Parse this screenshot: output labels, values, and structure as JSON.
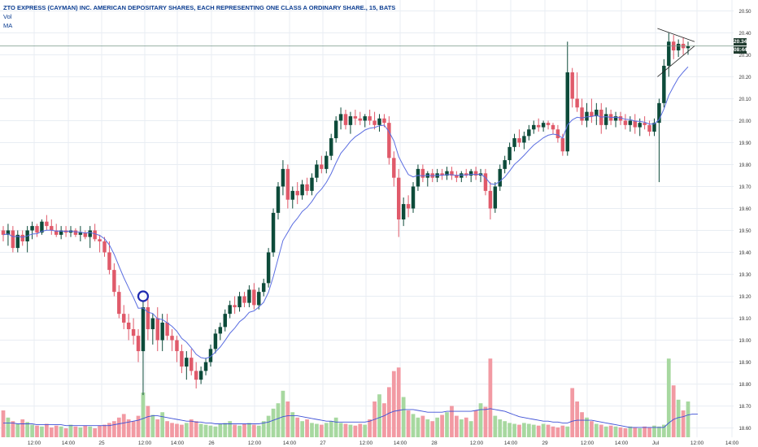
{
  "legend": {
    "title": "ZTO EXPRESS (CAYMAN) INC. AMERICAN DEPOSITARY SHARES, EACH REPRESENTING ONE CLASS A ORDINARY SHARE., 15, BATS",
    "vol_label": "Vol",
    "ma_label": "MA"
  },
  "price_tags": {
    "last_price": "20.34",
    "countdown": "08:44"
  },
  "colors": {
    "up": "#0d4b3a",
    "down": "#e05a6a",
    "ma": "#5b6ee1",
    "vol_up": "#a7d8a0",
    "vol_down": "#f29aa3",
    "vol_ma": "#3f51d6",
    "marker": "#1f2bb0",
    "grid": "#e8edf3"
  },
  "chart_data": {
    "type": "candlestick",
    "interval": "15",
    "exchange": "BATS",
    "ylim": [
      18.58,
      20.52
    ],
    "y_ticks": [
      "20.50",
      "20.40",
      "20.30",
      "20.20",
      "20.10",
      "20.00",
      "19.90",
      "19.80",
      "19.70",
      "19.60",
      "19.50",
      "19.40",
      "19.30",
      "19.20",
      "19.10",
      "19.00",
      "18.90",
      "18.80",
      "18.70",
      "18.60"
    ],
    "x_ticks": [
      "12:00",
      "14:00",
      "25",
      "12:00",
      "14:00",
      "26",
      "12:00",
      "14:00",
      "27",
      "12:00",
      "14:00",
      "28",
      "12:00",
      "14:00",
      "29",
      "12:00",
      "14:00",
      "Jul",
      "12:00",
      "14:00"
    ],
    "last_price": 20.34,
    "horizontal_line": 20.34,
    "marker_circle": {
      "candle_index": 29,
      "price": 19.2
    },
    "candles": [
      [
        19.5,
        19.52,
        19.45,
        19.48
      ],
      [
        19.48,
        19.53,
        19.43,
        19.5
      ],
      [
        19.5,
        19.52,
        19.4,
        19.42
      ],
      [
        19.42,
        19.5,
        19.4,
        19.48
      ],
      [
        19.48,
        19.5,
        19.43,
        19.45
      ],
      [
        19.45,
        19.52,
        19.4,
        19.5
      ],
      [
        19.5,
        19.54,
        19.46,
        19.52
      ],
      [
        19.52,
        19.53,
        19.47,
        19.49
      ],
      [
        19.49,
        19.55,
        19.48,
        19.54
      ],
      [
        19.54,
        19.57,
        19.5,
        19.52
      ],
      [
        19.52,
        19.55,
        19.48,
        19.5
      ],
      [
        19.5,
        19.53,
        19.47,
        19.48
      ],
      [
        19.48,
        19.52,
        19.46,
        19.5
      ],
      [
        19.5,
        19.52,
        19.47,
        19.49
      ],
      [
        19.49,
        19.52,
        19.47,
        19.5
      ],
      [
        19.5,
        19.51,
        19.47,
        19.48
      ],
      [
        19.48,
        19.52,
        19.45,
        19.49
      ],
      [
        19.49,
        19.5,
        19.46,
        19.47
      ],
      [
        19.47,
        19.52,
        19.42,
        19.5
      ],
      [
        19.5,
        19.53,
        19.45,
        19.46
      ],
      [
        19.46,
        19.48,
        19.4,
        19.45
      ],
      [
        19.45,
        19.47,
        19.38,
        19.4
      ],
      [
        19.4,
        19.45,
        19.3,
        19.32
      ],
      [
        19.32,
        19.35,
        19.2,
        19.22
      ],
      [
        19.22,
        19.25,
        19.1,
        19.12
      ],
      [
        19.12,
        19.16,
        19.05,
        19.08
      ],
      [
        19.08,
        19.12,
        19.0,
        19.05
      ],
      [
        19.05,
        19.1,
        18.98,
        19.02
      ],
      [
        19.02,
        19.05,
        18.9,
        18.95
      ],
      [
        18.95,
        19.18,
        18.75,
        19.15
      ],
      [
        19.15,
        19.2,
        19.0,
        19.05
      ],
      [
        19.05,
        19.12,
        18.98,
        19.1
      ],
      [
        19.1,
        19.15,
        18.95,
        19.0
      ],
      [
        19.0,
        19.12,
        18.95,
        19.08
      ],
      [
        19.08,
        19.12,
        19.0,
        19.02
      ],
      [
        19.02,
        19.05,
        18.95,
        19.0
      ],
      [
        19.0,
        19.02,
        18.9,
        18.95
      ],
      [
        18.95,
        18.98,
        18.85,
        18.88
      ],
      [
        18.88,
        18.95,
        18.82,
        18.92
      ],
      [
        18.92,
        18.96,
        18.84,
        18.86
      ],
      [
        18.86,
        18.9,
        18.78,
        18.82
      ],
      [
        18.82,
        18.88,
        18.8,
        18.86
      ],
      [
        18.86,
        18.92,
        18.84,
        18.9
      ],
      [
        18.9,
        18.98,
        18.88,
        18.96
      ],
      [
        18.96,
        19.05,
        18.94,
        19.03
      ],
      [
        19.03,
        19.08,
        19.0,
        19.06
      ],
      [
        19.06,
        19.14,
        19.04,
        19.12
      ],
      [
        19.12,
        19.18,
        19.1,
        19.16
      ],
      [
        19.16,
        19.2,
        19.12,
        19.15
      ],
      [
        19.15,
        19.22,
        19.13,
        19.2
      ],
      [
        19.2,
        19.22,
        19.15,
        19.17
      ],
      [
        19.17,
        19.25,
        19.15,
        19.23
      ],
      [
        19.23,
        19.26,
        19.14,
        19.16
      ],
      [
        19.16,
        19.24,
        19.14,
        19.22
      ],
      [
        19.22,
        19.28,
        19.2,
        19.26
      ],
      [
        19.26,
        19.42,
        19.24,
        19.4
      ],
      [
        19.4,
        19.6,
        19.38,
        19.58
      ],
      [
        19.58,
        19.72,
        19.55,
        19.7
      ],
      [
        19.7,
        19.82,
        19.66,
        19.78
      ],
      [
        19.78,
        19.8,
        19.6,
        19.64
      ],
      [
        19.64,
        19.7,
        19.6,
        19.68
      ],
      [
        19.68,
        19.72,
        19.62,
        19.66
      ],
      [
        19.66,
        19.73,
        19.64,
        19.71
      ],
      [
        19.71,
        19.74,
        19.66,
        19.68
      ],
      [
        19.68,
        19.76,
        19.66,
        19.74
      ],
      [
        19.74,
        19.82,
        19.72,
        19.8
      ],
      [
        19.8,
        19.84,
        19.76,
        19.78
      ],
      [
        19.78,
        19.86,
        19.76,
        19.84
      ],
      [
        19.84,
        19.94,
        19.82,
        19.92
      ],
      [
        19.92,
        20.02,
        19.9,
        20.0
      ],
      [
        20.0,
        20.06,
        19.96,
        20.03
      ],
      [
        20.03,
        20.05,
        19.96,
        19.98
      ],
      [
        19.98,
        20.04,
        19.94,
        20.02
      ],
      [
        20.02,
        20.05,
        19.98,
        20.01
      ],
      [
        20.01,
        20.04,
        19.98,
        20.0
      ],
      [
        20.0,
        20.03,
        19.97,
        20.02
      ],
      [
        20.02,
        20.05,
        19.98,
        20.0
      ],
      [
        20.0,
        20.04,
        19.96,
        19.98
      ],
      [
        19.98,
        20.03,
        19.95,
        20.01
      ],
      [
        20.01,
        20.03,
        19.97,
        19.99
      ],
      [
        19.99,
        20.02,
        19.8,
        19.83
      ],
      [
        19.83,
        19.86,
        19.7,
        19.74
      ],
      [
        19.74,
        19.78,
        19.47,
        19.55
      ],
      [
        19.55,
        19.65,
        19.52,
        19.62
      ],
      [
        19.62,
        19.66,
        19.56,
        19.6
      ],
      [
        19.6,
        19.72,
        19.58,
        19.7
      ],
      [
        19.7,
        19.8,
        19.68,
        19.78
      ],
      [
        19.78,
        19.8,
        19.72,
        19.74
      ],
      [
        19.74,
        19.77,
        19.7,
        19.76
      ],
      [
        19.76,
        19.78,
        19.72,
        19.74
      ],
      [
        19.74,
        19.78,
        19.72,
        19.76
      ],
      [
        19.76,
        19.78,
        19.73,
        19.75
      ],
      [
        19.75,
        19.79,
        19.73,
        19.77
      ],
      [
        19.77,
        19.79,
        19.73,
        19.75
      ],
      [
        19.75,
        19.77,
        19.72,
        19.74
      ],
      [
        19.74,
        19.77,
        19.72,
        19.76
      ],
      [
        19.76,
        19.78,
        19.74,
        19.75
      ],
      [
        19.75,
        19.78,
        19.72,
        19.77
      ],
      [
        19.77,
        19.79,
        19.73,
        19.75
      ],
      [
        19.75,
        19.78,
        19.72,
        19.76
      ],
      [
        19.76,
        19.78,
        19.66,
        19.68
      ],
      [
        19.68,
        19.72,
        19.55,
        19.6
      ],
      [
        19.6,
        19.72,
        19.58,
        19.7
      ],
      [
        19.7,
        19.8,
        19.68,
        19.78
      ],
      [
        19.78,
        19.84,
        19.76,
        19.82
      ],
      [
        19.82,
        19.9,
        19.8,
        19.88
      ],
      [
        19.88,
        19.94,
        19.86,
        19.92
      ],
      [
        19.92,
        19.96,
        19.88,
        19.9
      ],
      [
        19.9,
        19.95,
        19.87,
        19.93
      ],
      [
        19.93,
        19.98,
        19.91,
        19.96
      ],
      [
        19.96,
        20.0,
        19.94,
        19.98
      ],
      [
        19.98,
        20.01,
        19.95,
        19.97
      ],
      [
        19.97,
        20.0,
        19.95,
        19.99
      ],
      [
        19.99,
        20.0,
        19.96,
        19.98
      ],
      [
        19.98,
        19.99,
        19.94,
        19.96
      ],
      [
        19.96,
        19.98,
        19.9,
        19.92
      ],
      [
        19.92,
        19.94,
        19.84,
        19.86
      ],
      [
        19.86,
        20.36,
        19.84,
        20.22
      ],
      [
        20.22,
        20.24,
        20.06,
        20.1
      ],
      [
        20.1,
        20.22,
        20.04,
        20.06
      ],
      [
        20.06,
        20.1,
        19.98,
        20.0
      ],
      [
        20.0,
        20.08,
        19.97,
        20.04
      ],
      [
        20.04,
        20.1,
        19.99,
        20.02
      ],
      [
        20.02,
        20.08,
        19.98,
        20.05
      ],
      [
        20.05,
        20.08,
        19.94,
        19.98
      ],
      [
        19.98,
        20.06,
        19.96,
        20.03
      ],
      [
        20.03,
        20.05,
        19.98,
        20.0
      ],
      [
        20.0,
        20.04,
        19.97,
        20.02
      ],
      [
        20.02,
        20.04,
        19.98,
        20.0
      ],
      [
        20.0,
        20.03,
        19.96,
        19.98
      ],
      [
        19.98,
        20.02,
        19.95,
        20.0
      ],
      [
        20.0,
        20.03,
        19.94,
        19.97
      ],
      [
        19.97,
        20.01,
        19.93,
        19.99
      ],
      [
        19.99,
        20.02,
        19.96,
        19.98
      ],
      [
        19.98,
        20.0,
        19.93,
        19.95
      ],
      [
        19.95,
        20.01,
        19.93,
        19.99
      ],
      [
        19.99,
        20.1,
        19.72,
        20.08
      ],
      [
        20.08,
        20.28,
        20.06,
        20.25
      ],
      [
        20.25,
        20.4,
        20.2,
        20.36
      ],
      [
        20.36,
        20.39,
        20.28,
        20.32
      ],
      [
        20.32,
        20.37,
        20.29,
        20.35
      ],
      [
        20.35,
        20.38,
        20.3,
        20.33
      ],
      [
        20.33,
        20.36,
        20.3,
        20.34
      ]
    ],
    "volume": {
      "ylim": [
        0,
        1.0
      ],
      "values": [
        0.3,
        0.22,
        0.18,
        0.15,
        0.2,
        0.17,
        0.14,
        0.13,
        0.12,
        0.15,
        0.11,
        0.13,
        0.12,
        0.1,
        0.14,
        0.12,
        0.11,
        0.13,
        0.12,
        0.1,
        0.13,
        0.14,
        0.16,
        0.18,
        0.22,
        0.26,
        0.2,
        0.18,
        0.24,
        0.5,
        0.35,
        0.25,
        0.2,
        0.28,
        0.18,
        0.16,
        0.15,
        0.14,
        0.16,
        0.2,
        0.18,
        0.15,
        0.14,
        0.13,
        0.12,
        0.15,
        0.16,
        0.18,
        0.14,
        0.13,
        0.15,
        0.16,
        0.14,
        0.13,
        0.18,
        0.24,
        0.32,
        0.38,
        0.52,
        0.4,
        0.28,
        0.22,
        0.18,
        0.2,
        0.16,
        0.15,
        0.14,
        0.16,
        0.18,
        0.22,
        0.16,
        0.15,
        0.14,
        0.13,
        0.15,
        0.14,
        0.2,
        0.4,
        0.48,
        0.38,
        0.56,
        0.74,
        0.78,
        0.45,
        0.3,
        0.26,
        0.22,
        0.24,
        0.2,
        0.18,
        0.22,
        0.25,
        0.28,
        0.35,
        0.24,
        0.2,
        0.22,
        0.18,
        0.3,
        0.38,
        0.34,
        0.88,
        0.24,
        0.2,
        0.18,
        0.16,
        0.15,
        0.14,
        0.16,
        0.15,
        0.14,
        0.13,
        0.15,
        0.14,
        0.12,
        0.11,
        0.13,
        0.12,
        0.55,
        0.4,
        0.28,
        0.22,
        0.18,
        0.15,
        0.14,
        0.12,
        0.13,
        0.12,
        0.11,
        0.1,
        0.12,
        0.11,
        0.1,
        0.12,
        0.11,
        0.13,
        0.12,
        0.14,
        0.88,
        0.58,
        0.42,
        0.3,
        0.4,
        0.36,
        0.3
      ],
      "ma": [
        0.16,
        0.16,
        0.16,
        0.15,
        0.15,
        0.15,
        0.15,
        0.14,
        0.14,
        0.14,
        0.14,
        0.14,
        0.14,
        0.13,
        0.13,
        0.13,
        0.13,
        0.13,
        0.13,
        0.13,
        0.13,
        0.13,
        0.13,
        0.14,
        0.15,
        0.16,
        0.17,
        0.18,
        0.19,
        0.21,
        0.23,
        0.24,
        0.24,
        0.23,
        0.22,
        0.21,
        0.2,
        0.19,
        0.18,
        0.18,
        0.17,
        0.17,
        0.16,
        0.16,
        0.15,
        0.15,
        0.15,
        0.15,
        0.15,
        0.15,
        0.15,
        0.15,
        0.15,
        0.15,
        0.16,
        0.17,
        0.19,
        0.21,
        0.23,
        0.24,
        0.24,
        0.24,
        0.23,
        0.22,
        0.21,
        0.2,
        0.19,
        0.18,
        0.18,
        0.17,
        0.17,
        0.17,
        0.17,
        0.17,
        0.17,
        0.17,
        0.18,
        0.2,
        0.22,
        0.24,
        0.27,
        0.29,
        0.3,
        0.31,
        0.31,
        0.31,
        0.3,
        0.29,
        0.28,
        0.28,
        0.28,
        0.28,
        0.29,
        0.29,
        0.29,
        0.29,
        0.29,
        0.29,
        0.3,
        0.31,
        0.31,
        0.32,
        0.31,
        0.3,
        0.29,
        0.27,
        0.25,
        0.23,
        0.22,
        0.21,
        0.2,
        0.19,
        0.18,
        0.18,
        0.17,
        0.17,
        0.16,
        0.16,
        0.18,
        0.19,
        0.19,
        0.19,
        0.19,
        0.18,
        0.17,
        0.16,
        0.15,
        0.14,
        0.13,
        0.12,
        0.11,
        0.11,
        0.11,
        0.11,
        0.11,
        0.11,
        0.11,
        0.11,
        0.16,
        0.2,
        0.22,
        0.23,
        0.25,
        0.26,
        0.26
      ]
    },
    "pattern": "symmetrical-triangle"
  }
}
